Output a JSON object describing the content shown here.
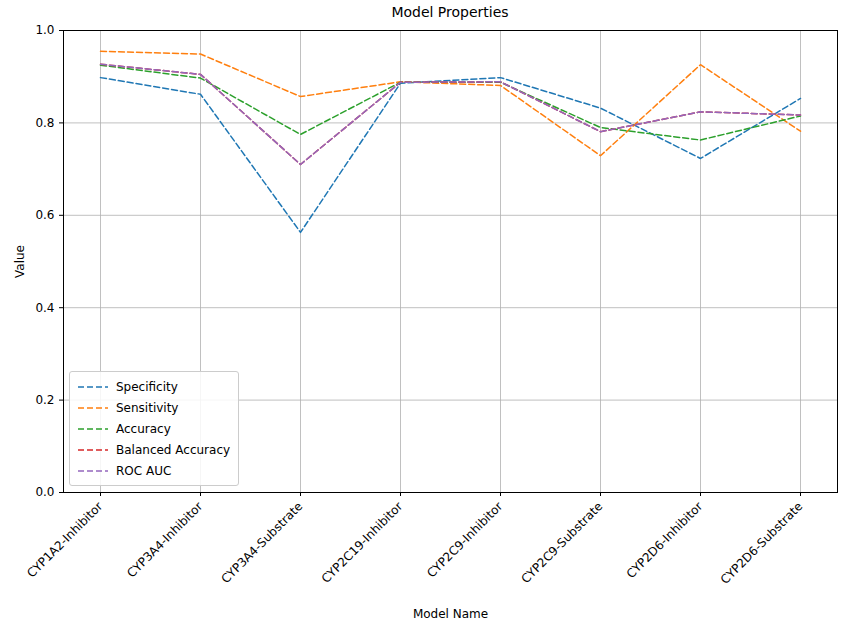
{
  "chart_data": {
    "type": "line",
    "title": "Model Properties",
    "x_label": "Model Name",
    "y_label": "Value",
    "categories": [
      "CYP1A2-Inhibitor",
      "CYP3A4-Inhibitor",
      "CYP3A4-Substrate",
      "CYP2C19-Inhibitor",
      "CYP2C9-Inhibitor",
      "CYP2C9-Substrate",
      "CYP2D6-Inhibitor",
      "CYP2D6-Substrate"
    ],
    "series": [
      {
        "name": "Specificity",
        "color": "#1f77b4",
        "values": [
          0.898,
          0.862,
          0.563,
          0.886,
          0.898,
          0.832,
          0.723,
          0.853
        ]
      },
      {
        "name": "Sensitivity",
        "color": "#ff7f0e",
        "values": [
          0.955,
          0.949,
          0.857,
          0.889,
          0.881,
          0.729,
          0.926,
          0.782
        ]
      },
      {
        "name": "Accuracy",
        "color": "#2ca02c",
        "values": [
          0.925,
          0.897,
          0.775,
          0.888,
          0.888,
          0.79,
          0.763,
          0.815
        ]
      },
      {
        "name": "Balanced Accuracy",
        "color": "#d62728",
        "values": [
          0.927,
          0.905,
          0.71,
          0.888,
          0.889,
          0.781,
          0.824,
          0.817
        ]
      },
      {
        "name": "ROC AUC",
        "color": "#9467bd",
        "values": [
          0.927,
          0.905,
          0.71,
          0.888,
          0.889,
          0.781,
          0.824,
          0.817
        ]
      }
    ],
    "ylim": [
      0,
      1
    ],
    "yticks": [
      {
        "value": 0,
        "label": "0.0"
      },
      {
        "value": 0.2,
        "label": "0.2"
      },
      {
        "value": 0.4,
        "label": "0.4"
      },
      {
        "value": 0.6,
        "label": "0.6"
      },
      {
        "value": 0.8,
        "label": "0.8"
      },
      {
        "value": 1,
        "label": "1.0"
      }
    ],
    "grid": true,
    "legend": "lower left",
    "line_style": "dashed"
  }
}
